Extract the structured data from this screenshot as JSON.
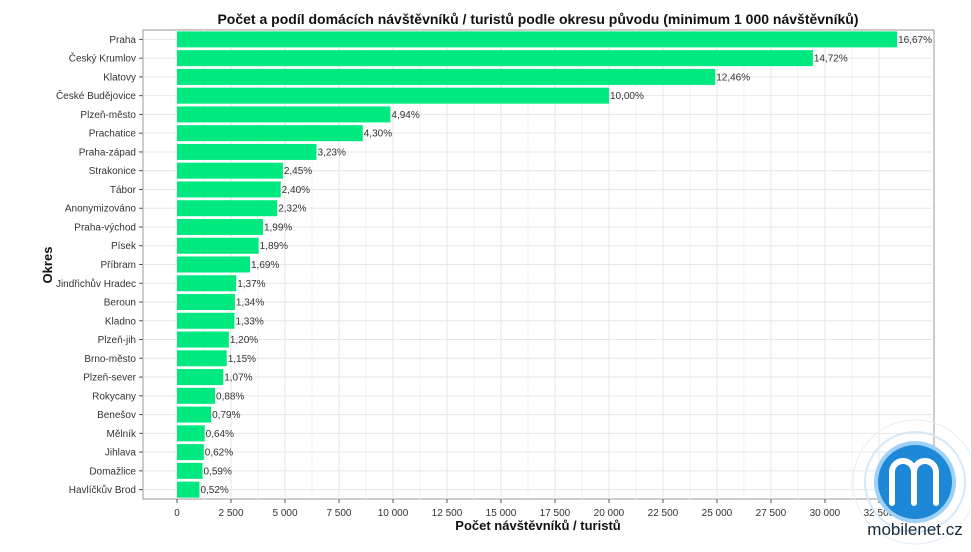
{
  "chart_data": {
    "type": "bar",
    "orientation": "horizontal",
    "title": "Počet a podíl domácích návštěvníků / turistů podle okresu původu (minimum 1 000 návštěvníků)",
    "xlabel": "Počet návštěvníků / turistů",
    "ylabel": "Okres",
    "xlim": [
      -1575,
      35050
    ],
    "xticks": [
      0,
      2500,
      5000,
      7500,
      10000,
      12500,
      15000,
      17500,
      20000,
      22500,
      25000,
      27500,
      30000,
      32500
    ],
    "xtick_labels": [
      "0",
      "2 500",
      "5 000",
      "7 500",
      "10 000",
      "12 500",
      "15 000",
      "17 500",
      "20 000",
      "22 500",
      "25 000",
      "27 500",
      "30 000",
      "32 500"
    ],
    "grid": true,
    "bar_color": "#00E880",
    "categories": [
      "Praha",
      "Český Krumlov",
      "Klatovy",
      "České Budějovice",
      "Plzeň-město",
      "Prachatice",
      "Praha-západ",
      "Strakonice",
      "Tábor",
      "Anonymizováno",
      "Praha-východ",
      "Písek",
      "Příbram",
      "Jindřichův Hradec",
      "Beroun",
      "Kladno",
      "Plzeň-jih",
      "Brno-město",
      "Plzeň-sever",
      "Rokycany",
      "Benešov",
      "Mělník",
      "Jihlava",
      "Domažlice",
      "Havlíčkův Brod"
    ],
    "values": [
      33340,
      29440,
      24920,
      20000,
      9880,
      8600,
      6460,
      4900,
      4800,
      4640,
      3980,
      3780,
      3380,
      2740,
      2680,
      2660,
      2400,
      2300,
      2140,
      1760,
      1580,
      1280,
      1240,
      1180,
      1040
    ],
    "data_labels": [
      "16,67%",
      "14,72%",
      "12,46%",
      "10,00%",
      "4,94%",
      "4,30%",
      "3,23%",
      "2,45%",
      "2,40%",
      "2,32%",
      "1,99%",
      "1,89%",
      "1,69%",
      "1,37%",
      "1,34%",
      "1,33%",
      "1,20%",
      "1,15%",
      "1,07%",
      "0,88%",
      "0,79%",
      "0,64%",
      "0,62%",
      "0,59%",
      "0,52%"
    ]
  },
  "watermark": {
    "text": "mobilenet.cz",
    "color": "#1e88d8"
  }
}
